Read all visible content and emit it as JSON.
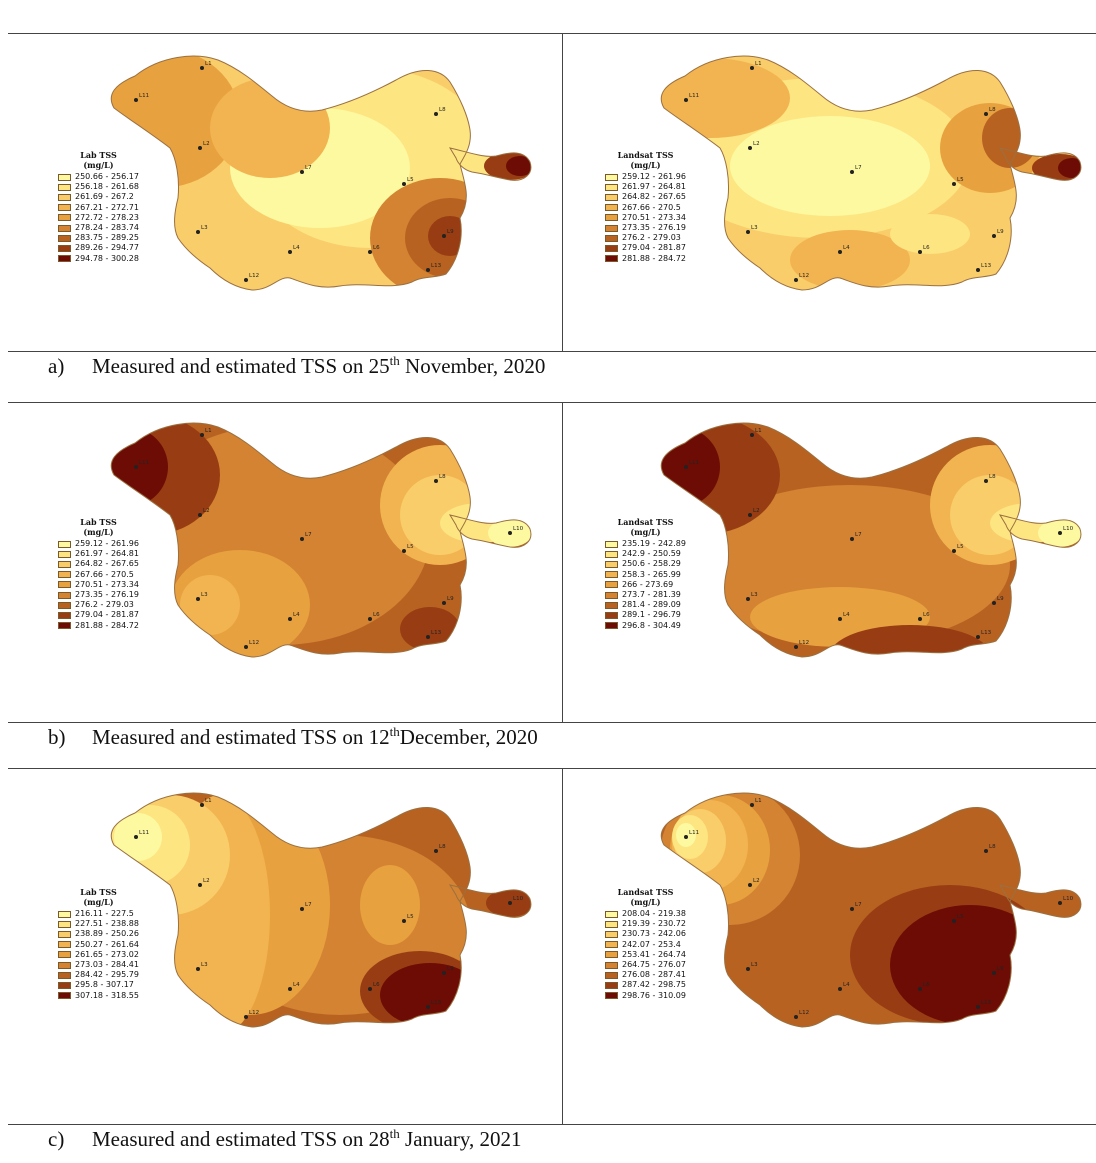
{
  "colors": {
    "ramp_yellow_to_brown": [
      "#fdf9a0",
      "#fde581",
      "#f9cd6a",
      "#f2b450",
      "#e8a13f",
      "#d38331",
      "#b86222",
      "#983d13",
      "#6d0c05"
    ],
    "boundary": "#9a7040",
    "site_point": "#222222"
  },
  "rows": [
    {
      "caption": {
        "letter": "a)",
        "pre": "Measured and estimated TSS on 25",
        "sup": "th",
        "post": " November, 2020"
      },
      "left": {
        "legend_title": [
          "Lab TSS",
          "(mg/L)"
        ],
        "legend_items": [
          "250.66 - 256.17",
          "256.18 - 261.68",
          "261.69 - 267.2",
          "267.21 - 272.71",
          "272.72 - 278.23",
          "278.24 - 283.74",
          "283.75 - 289.25",
          "289.26 - 294.77",
          "294.78 - 300.28"
        ],
        "sites": [
          "L1",
          "L11",
          "L2",
          "L7",
          "L8",
          "L5",
          "L3",
          "L4",
          "L6",
          "L9",
          "L12",
          "L13"
        ]
      },
      "right": {
        "legend_title": [
          "Landsat TSS",
          "(mg/L)"
        ],
        "legend_items": [
          "259.12 - 261.96",
          "261.97 - 264.81",
          "264.82 - 267.65",
          "267.66 - 270.5",
          "270.51 - 273.34",
          "273.35 - 276.19",
          "276.2 - 279.03",
          "279.04 - 281.87",
          "281.88 - 284.72"
        ],
        "sites": [
          "L1",
          "L11",
          "L2",
          "L7",
          "L8",
          "L5",
          "L3",
          "L4",
          "L6",
          "L9",
          "L12",
          "L13"
        ]
      }
    },
    {
      "caption": {
        "letter": "b)",
        "pre": "Measured and estimated TSS  on 12",
        "sup": "th",
        "post": "December, 2020"
      },
      "left": {
        "legend_title": [
          "Lab TSS",
          "(mg/L)"
        ],
        "legend_items": [
          "259.12 - 261.96",
          "261.97 - 264.81",
          "264.82 - 267.65",
          "267.66 - 270.5",
          "270.51 - 273.34",
          "273.35 - 276.19",
          "276.2 - 279.03",
          "279.04 - 281.87",
          "281.88 - 284.72"
        ],
        "sites": [
          "L1",
          "L11",
          "L2",
          "L7",
          "L8",
          "L10",
          "L5",
          "L3",
          "L4",
          "L6",
          "L9",
          "L12",
          "L13"
        ]
      },
      "right": {
        "legend_title": [
          "Landsat TSS",
          "(mg/L)"
        ],
        "legend_items": [
          "235.19 - 242.89",
          "242.9 - 250.59",
          "250.6 - 258.29",
          "258.3 - 265.99",
          "266 - 273.69",
          "273.7 - 281.39",
          "281.4 - 289.09",
          "289.1 - 296.79",
          "296.8 - 304.49"
        ],
        "sites": [
          "L1",
          "L11",
          "L2",
          "L7",
          "L8",
          "L10",
          "L5",
          "L3",
          "L4",
          "L6",
          "L9",
          "L12",
          "L13"
        ]
      }
    },
    {
      "caption": {
        "letter": "c)",
        "pre": "Measured and estimated TSS  on 28",
        "sup": "th",
        "post": " January, 2021"
      },
      "left": {
        "legend_title": [
          "Lab TSS",
          "(mg/L)"
        ],
        "legend_items": [
          "216.11 - 227.5",
          "227.51 - 238.88",
          "238.89 - 250.26",
          "250.27 - 261.64",
          "261.65 - 273.02",
          "273.03 - 284.41",
          "284.42 - 295.79",
          "295.8 - 307.17",
          "307.18 - 318.55"
        ],
        "sites": [
          "L1",
          "L11",
          "L2",
          "L7",
          "L8",
          "L10",
          "L5",
          "L3",
          "L4",
          "L6",
          "L9",
          "L12",
          "L13"
        ]
      },
      "right": {
        "legend_title": [
          "Landsat TSS",
          "(mg/L)"
        ],
        "legend_items": [
          "208.04 - 219.38",
          "219.39 - 230.72",
          "230.73 - 242.06",
          "242.07 - 253.4",
          "253.41 - 264.74",
          "264.75 - 276.07",
          "276.08 - 287.41",
          "287.42 - 298.75",
          "298.76 - 310.09"
        ],
        "sites": [
          "L1",
          "L11",
          "L2",
          "L7",
          "L8",
          "L10",
          "L5",
          "L3",
          "L4",
          "L6",
          "L9",
          "L12",
          "L13"
        ]
      }
    }
  ]
}
